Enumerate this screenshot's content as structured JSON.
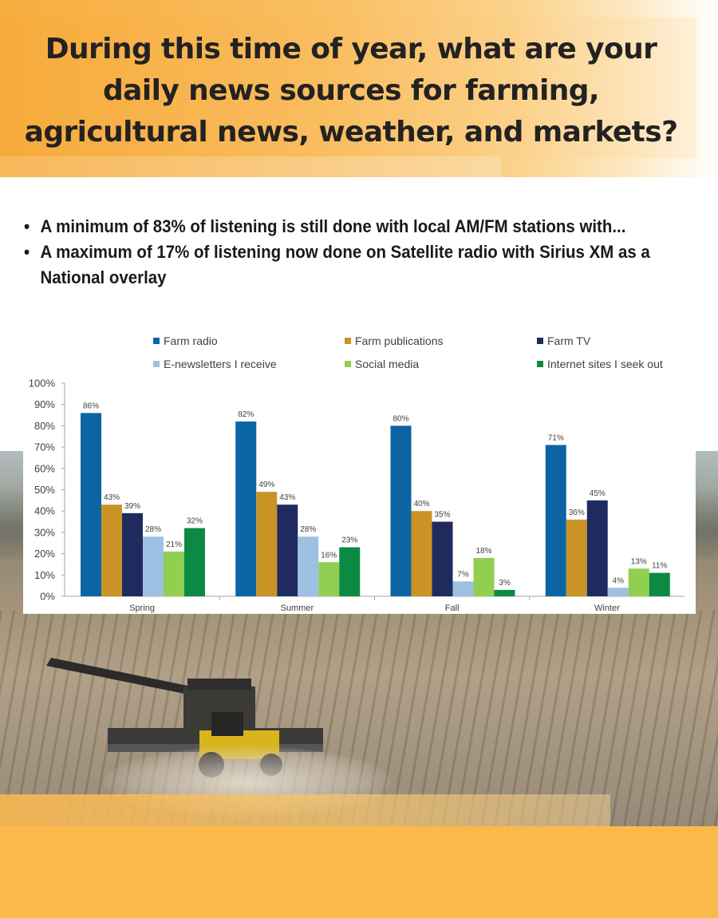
{
  "title": "During this time of year, what are your daily news sources for farming, agricultural news, weather, and markets?",
  "bullets": [
    "A minimum of 83% of listening is still done with local AM/FM stations with...",
    "A maximum of 17% of listening now done on Satellite radio with Sirius XM as a National overlay"
  ],
  "colors": {
    "header": "#f7ad3f",
    "footer": "#fbb94b",
    "farm_radio": "#0a65a2",
    "farm_publications": "#c99425",
    "farm_tv": "#1f2b5f",
    "e_newsletters": "#9cc1e3",
    "social_media": "#91cf50",
    "internet_sites": "#0c8a43"
  },
  "chart_data": {
    "type": "bar",
    "categories": [
      "Spring",
      "Summer",
      "Fall",
      "Winter"
    ],
    "series": [
      {
        "name": "Farm radio",
        "values": [
          86,
          82,
          80,
          71
        ],
        "labels": [
          "86%",
          "82%",
          "80%",
          "71%"
        ],
        "color": "#0a65a2"
      },
      {
        "name": "Farm publications",
        "values": [
          43,
          49,
          40,
          36
        ],
        "labels": [
          "43%",
          "49%",
          "40%",
          "36%"
        ],
        "color": "#c99425"
      },
      {
        "name": "Farm TV",
        "values": [
          39,
          43,
          35,
          45
        ],
        "labels": [
          "39%",
          "43%",
          "35%",
          "45%"
        ],
        "color": "#1f2b5f"
      },
      {
        "name": "E-newsletters I receive",
        "values": [
          28,
          28,
          7,
          4
        ],
        "labels": [
          "28%",
          "28%",
          "7%",
          "4%"
        ],
        "color": "#9cc1e3"
      },
      {
        "name": "Social media",
        "values": [
          21,
          16,
          18,
          13
        ],
        "labels": [
          "21%",
          "16%",
          "18%",
          "13%"
        ],
        "color": "#91cf50"
      },
      {
        "name": "Internet sites I seek out",
        "values": [
          32,
          23,
          3,
          11
        ],
        "labels": [
          "32%",
          "23%",
          "3%",
          "11%"
        ],
        "color": "#0c8a43"
      }
    ],
    "ylim": [
      0,
      100
    ],
    "yticks": [
      0,
      10,
      20,
      30,
      40,
      50,
      60,
      70,
      80,
      90,
      100
    ],
    "ytick_labels": [
      "0%",
      "10%",
      "20%",
      "30%",
      "40%",
      "50%",
      "60%",
      "70%",
      "80%",
      "90%",
      "100%"
    ],
    "legend_position": "top",
    "grid": false
  }
}
